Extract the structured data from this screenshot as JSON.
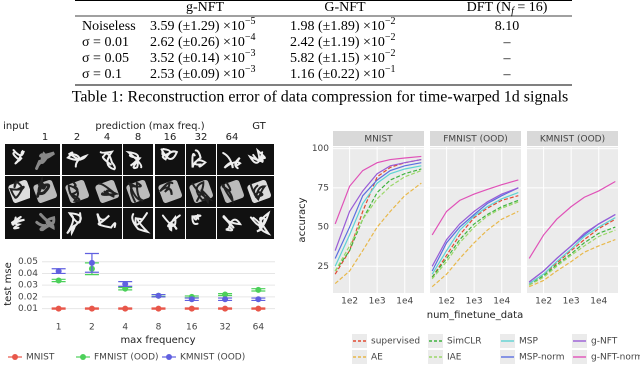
{
  "table": {
    "header": [
      {
        "text": "g-NFT"
      },
      {
        "text": "G-NFT"
      },
      {
        "text": "DFT (N",
        "sub": "f",
        "tail": " = 16)"
      }
    ],
    "rows": [
      {
        "label": "Noiseless",
        "cells": [
          {
            "text": "3.59 (±1.29) ×10",
            "exp": "−5"
          },
          {
            "text": "1.98 (±1.89) ×10",
            "exp": "−2"
          },
          {
            "text": "8.10"
          }
        ]
      },
      {
        "label": "σ = 0.01",
        "cells": [
          {
            "text": "2.62 (±0.26) ×10",
            "exp": "−4"
          },
          {
            "text": "2.42 (±1.19) ×10",
            "exp": "−2"
          },
          {
            "text": "–"
          }
        ]
      },
      {
        "label": "σ = 0.05",
        "cells": [
          {
            "text": "3.52 (±0.14) ×10",
            "exp": "−3"
          },
          {
            "text": "5.82 (±1.15) ×10",
            "exp": "−2"
          },
          {
            "text": "–"
          }
        ]
      },
      {
        "label": "σ = 0.1",
        "cells": [
          {
            "text": "2.53 (±0.09) ×10",
            "exp": "−3"
          },
          {
            "text": "1.16 (±0.22) ×10",
            "exp": "−1"
          },
          {
            "text": "–"
          }
        ]
      }
    ],
    "caption": "Table 1: Reconstruction error of data compression for time-warped 1d signals"
  },
  "image_grid": {
    "input_label": "input",
    "prediction_label": "prediction (max freq.)",
    "columns": [
      "1",
      "2",
      "4",
      "8",
      "16",
      "32",
      "64"
    ],
    "gt_label": "GT"
  },
  "chart_data": [
    {
      "type": "errorbar",
      "ylabel": "test mse",
      "xlabel": "max frequency",
      "categories": [
        "1",
        "2",
        "4",
        "8",
        "16",
        "32",
        "64"
      ],
      "ylim": [
        0.002,
        0.06
      ],
      "yticks": [
        0.01,
        0.02,
        0.03,
        0.04,
        0.05
      ],
      "grid": true,
      "series": [
        {
          "name": "MNIST",
          "color": "#e8574a",
          "values": [
            0.01,
            0.01,
            0.01,
            0.01,
            0.01,
            0.01,
            0.01
          ],
          "errors": [
            0.0005,
            0.0005,
            0.0005,
            0.0005,
            0.0005,
            0.0005,
            0.0005
          ]
        },
        {
          "name": "FMNIST (OOD)",
          "color": "#4cd05a",
          "values": [
            0.034,
            0.044,
            0.027,
            0.021,
            0.02,
            0.022,
            0.026
          ],
          "errors": [
            0.001,
            0.005,
            0.001,
            0.0008,
            0.0008,
            0.0008,
            0.001
          ]
        },
        {
          "name": "KMNIST (OOD)",
          "color": "#6060e0",
          "values": [
            0.042,
            0.049,
            0.031,
            0.021,
            0.018,
            0.018,
            0.018
          ],
          "errors": [
            0.002,
            0.008,
            0.002,
            0.001,
            0.001,
            0.001,
            0.001
          ]
        }
      ]
    },
    {
      "type": "line",
      "ylabel": "accuracy",
      "xlabel": "num_finetune_data",
      "log_x": true,
      "grid": true,
      "x": [
        30,
        100,
        300,
        1000,
        3000,
        10000,
        40000
      ],
      "xlim": [
        25,
        50000
      ],
      "xticks": [
        {
          "value": 100,
          "label": "1e2"
        },
        {
          "value": 1000,
          "label": "1e3"
        },
        {
          "value": 10000,
          "label": "1e4"
        }
      ],
      "ylim": [
        8,
        101
      ],
      "yticks": [
        25,
        50,
        75,
        100
      ],
      "legend": [
        {
          "name": "supervised",
          "color": "#e24a33",
          "dashed": true
        },
        {
          "name": "AE",
          "color": "#e8b84a",
          "dashed": true
        },
        {
          "name": "SimCLR",
          "color": "#3fb33f",
          "dashed": true
        },
        {
          "name": "IAE",
          "color": "#9bd86a",
          "dashed": true
        },
        {
          "name": "MSP",
          "color": "#5fd3d3",
          "dashed": false
        },
        {
          "name": "MSP-norm",
          "color": "#5b6ee0",
          "dashed": false
        },
        {
          "name": "g-NFT",
          "color": "#9a5cd6",
          "dashed": false
        },
        {
          "name": "g-NFT-norm",
          "color": "#e052b8",
          "dashed": false
        }
      ],
      "panels": [
        {
          "title": "MNIST",
          "series": [
            {
              "values": [
                20,
                35,
                60,
                82,
                88,
                91,
                93
              ]
            },
            {
              "values": [
                14,
                22,
                35,
                50,
                60,
                70,
                78
              ]
            },
            {
              "values": [
                22,
                35,
                55,
                72,
                80,
                84,
                87
              ]
            },
            {
              "values": [
                22,
                38,
                55,
                68,
                76,
                82,
                86
              ]
            },
            {
              "values": [
                25,
                45,
                65,
                78,
                84,
                87,
                89
              ]
            },
            {
              "values": [
                30,
                50,
                70,
                80,
                86,
                89,
                91
              ]
            },
            {
              "values": [
                35,
                60,
                73,
                84,
                89,
                91,
                93
              ]
            },
            {
              "values": [
                52,
                76,
                86,
                91,
                93,
                94,
                95
              ]
            }
          ]
        },
        {
          "title": "FMNIST (OOD)",
          "series": [
            {
              "values": [
                18,
                32,
                45,
                56,
                62,
                67,
                70
              ]
            },
            {
              "values": [
                12,
                20,
                30,
                40,
                48,
                55,
                60
              ]
            },
            {
              "values": [
                18,
                30,
                42,
                52,
                58,
                63,
                67
              ]
            },
            {
              "values": [
                17,
                28,
                40,
                50,
                57,
                62,
                66
              ]
            },
            {
              "values": [
                20,
                35,
                48,
                57,
                63,
                68,
                72
              ]
            },
            {
              "values": [
                22,
                40,
                50,
                58,
                65,
                70,
                75
              ]
            },
            {
              "values": [
                25,
                42,
                52,
                60,
                66,
                71,
                75
              ]
            },
            {
              "values": [
                45,
                60,
                67,
                71,
                74,
                77,
                80
              ]
            }
          ]
        },
        {
          "title": "KMNIST (OOD)",
          "series": [
            {
              "values": [
                14,
                20,
                27,
                35,
                42,
                49,
                55
              ]
            },
            {
              "values": [
                12,
                16,
                22,
                28,
                34,
                38,
                42
              ]
            },
            {
              "values": [
                13,
                19,
                26,
                33,
                40,
                46,
                50
              ]
            },
            {
              "values": [
                13,
                18,
                25,
                32,
                38,
                44,
                48
              ]
            },
            {
              "values": [
                14,
                20,
                28,
                36,
                44,
                50,
                56
              ]
            },
            {
              "values": [
                15,
                22,
                30,
                38,
                45,
                52,
                58
              ]
            },
            {
              "values": [
                15,
                22,
                30,
                38,
                46,
                52,
                58
              ]
            },
            {
              "values": [
                30,
                45,
                55,
                63,
                69,
                73,
                79
              ]
            }
          ]
        }
      ]
    }
  ]
}
